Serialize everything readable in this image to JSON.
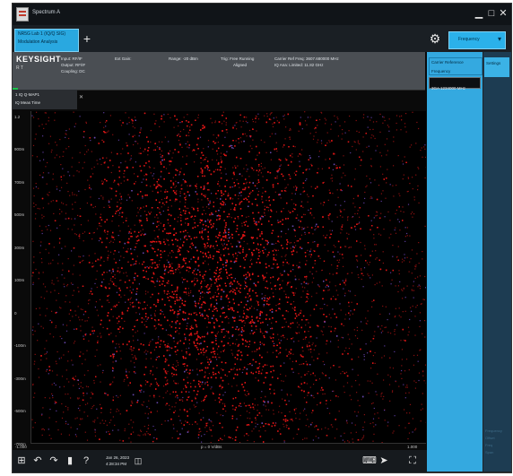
{
  "window": {
    "title": "Spectrum A",
    "controls": {
      "minimize": "▁",
      "maximize": "□",
      "close": "✕"
    }
  },
  "tabs": {
    "mode_tab": [
      "NR5G Lab 1 (IQ/Q SIG)",
      "Modulation Analysis"
    ],
    "add_tab": "+",
    "settings_icon": "gear-icon",
    "frequency_label": "Frequency",
    "frequency_chevron": "▾"
  },
  "infobar": {
    "brand": "KEYSIGHT",
    "sub": "R T",
    "fields": [
      [
        "Input: RF/IF",
        "Output: RF/IF",
        "Coupling: DC"
      ],
      [
        "Ext Gain:"
      ],
      [
        "Range: -20 dBm"
      ],
      [
        "Trig: Free Running",
        "Aligned"
      ],
      [
        "Carrier Ref Freq: 3607.680000 MHz",
        "IQ Ana: Limited: 11.82 GHz"
      ]
    ]
  },
  "right_panel": {
    "carrier_label": [
      "Carrier Reference",
      "Frequency"
    ],
    "carrier_value": "3GA 1234000 MHz",
    "settings_tab": "Settings",
    "faded_bottom": [
      "Frequency",
      "Offset",
      "Freq",
      "Span"
    ]
  },
  "plot": {
    "header": [
      "1 IQ Q-MAP1",
      "IQ Meas Time"
    ],
    "close": "✕",
    "y_top": "1.2",
    "y_ticks": [
      "900m",
      "700m",
      "500m",
      "300m",
      "100m",
      "0",
      "-100m",
      "-300m",
      "-500m",
      "-700m",
      "-900m"
    ],
    "x_left": "-1.000",
    "x_center": "p = 0  V/dBs",
    "x_right": "1.000"
  },
  "taskbar": {
    "icons": [
      "windows-icon",
      "undo-icon",
      "redo-icon",
      "file-icon",
      "help-icon"
    ],
    "help_glyph": "?",
    "date_lines": [
      "Jan 26, 2023",
      "4:28:34 PM"
    ],
    "right_icons": [
      "keyboard-icon",
      "pointer-icon",
      "fullscreen-icon"
    ]
  },
  "colors": {
    "accent": "#2bb1ea",
    "constellation": "#e11616",
    "background": "#000000"
  }
}
